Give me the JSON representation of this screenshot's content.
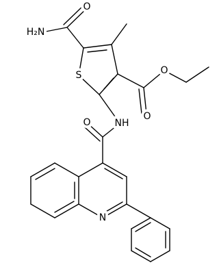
{
  "atoms": [
    {
      "label": "O"
    },
    {
      "label": "H₂N"
    },
    {
      "label": "S"
    },
    {
      "label": "O"
    },
    {
      "label": "O"
    },
    {
      "label": "NH"
    },
    {
      "label": "O"
    },
    {
      "label": "N"
    }
  ]
}
